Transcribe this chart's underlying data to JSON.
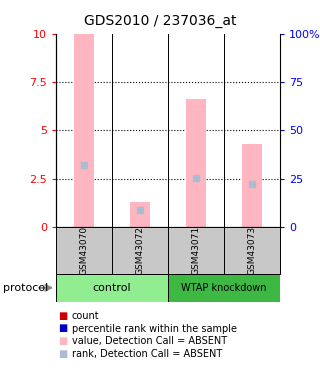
{
  "title": "GDS2010 / 237036_at",
  "samples": [
    "GSM43070",
    "GSM43072",
    "GSM43071",
    "GSM43073"
  ],
  "ylim_left": [
    0,
    10
  ],
  "ylim_right": [
    0,
    100
  ],
  "yticks_left": [
    0,
    2.5,
    5,
    7.5,
    10
  ],
  "yticks_right": [
    0,
    25,
    50,
    75,
    100
  ],
  "bar_values": [
    10.0,
    1.3,
    6.6,
    4.3
  ],
  "rank_values": [
    3.2,
    0.85,
    2.55,
    2.2
  ],
  "bar_color_absent": "#FFB6C1",
  "rank_color_absent": "#AABBD4",
  "sample_bg_color": "#C8C8C8",
  "control_color": "#90EE90",
  "knockdown_color": "#3CB843",
  "legend_items": [
    {
      "color": "#CC0000",
      "label": "count"
    },
    {
      "color": "#0000CC",
      "label": "percentile rank within the sample"
    },
    {
      "color": "#FFB6C1",
      "label": "value, Detection Call = ABSENT"
    },
    {
      "color": "#AABBD4",
      "label": "rank, Detection Call = ABSENT"
    }
  ]
}
